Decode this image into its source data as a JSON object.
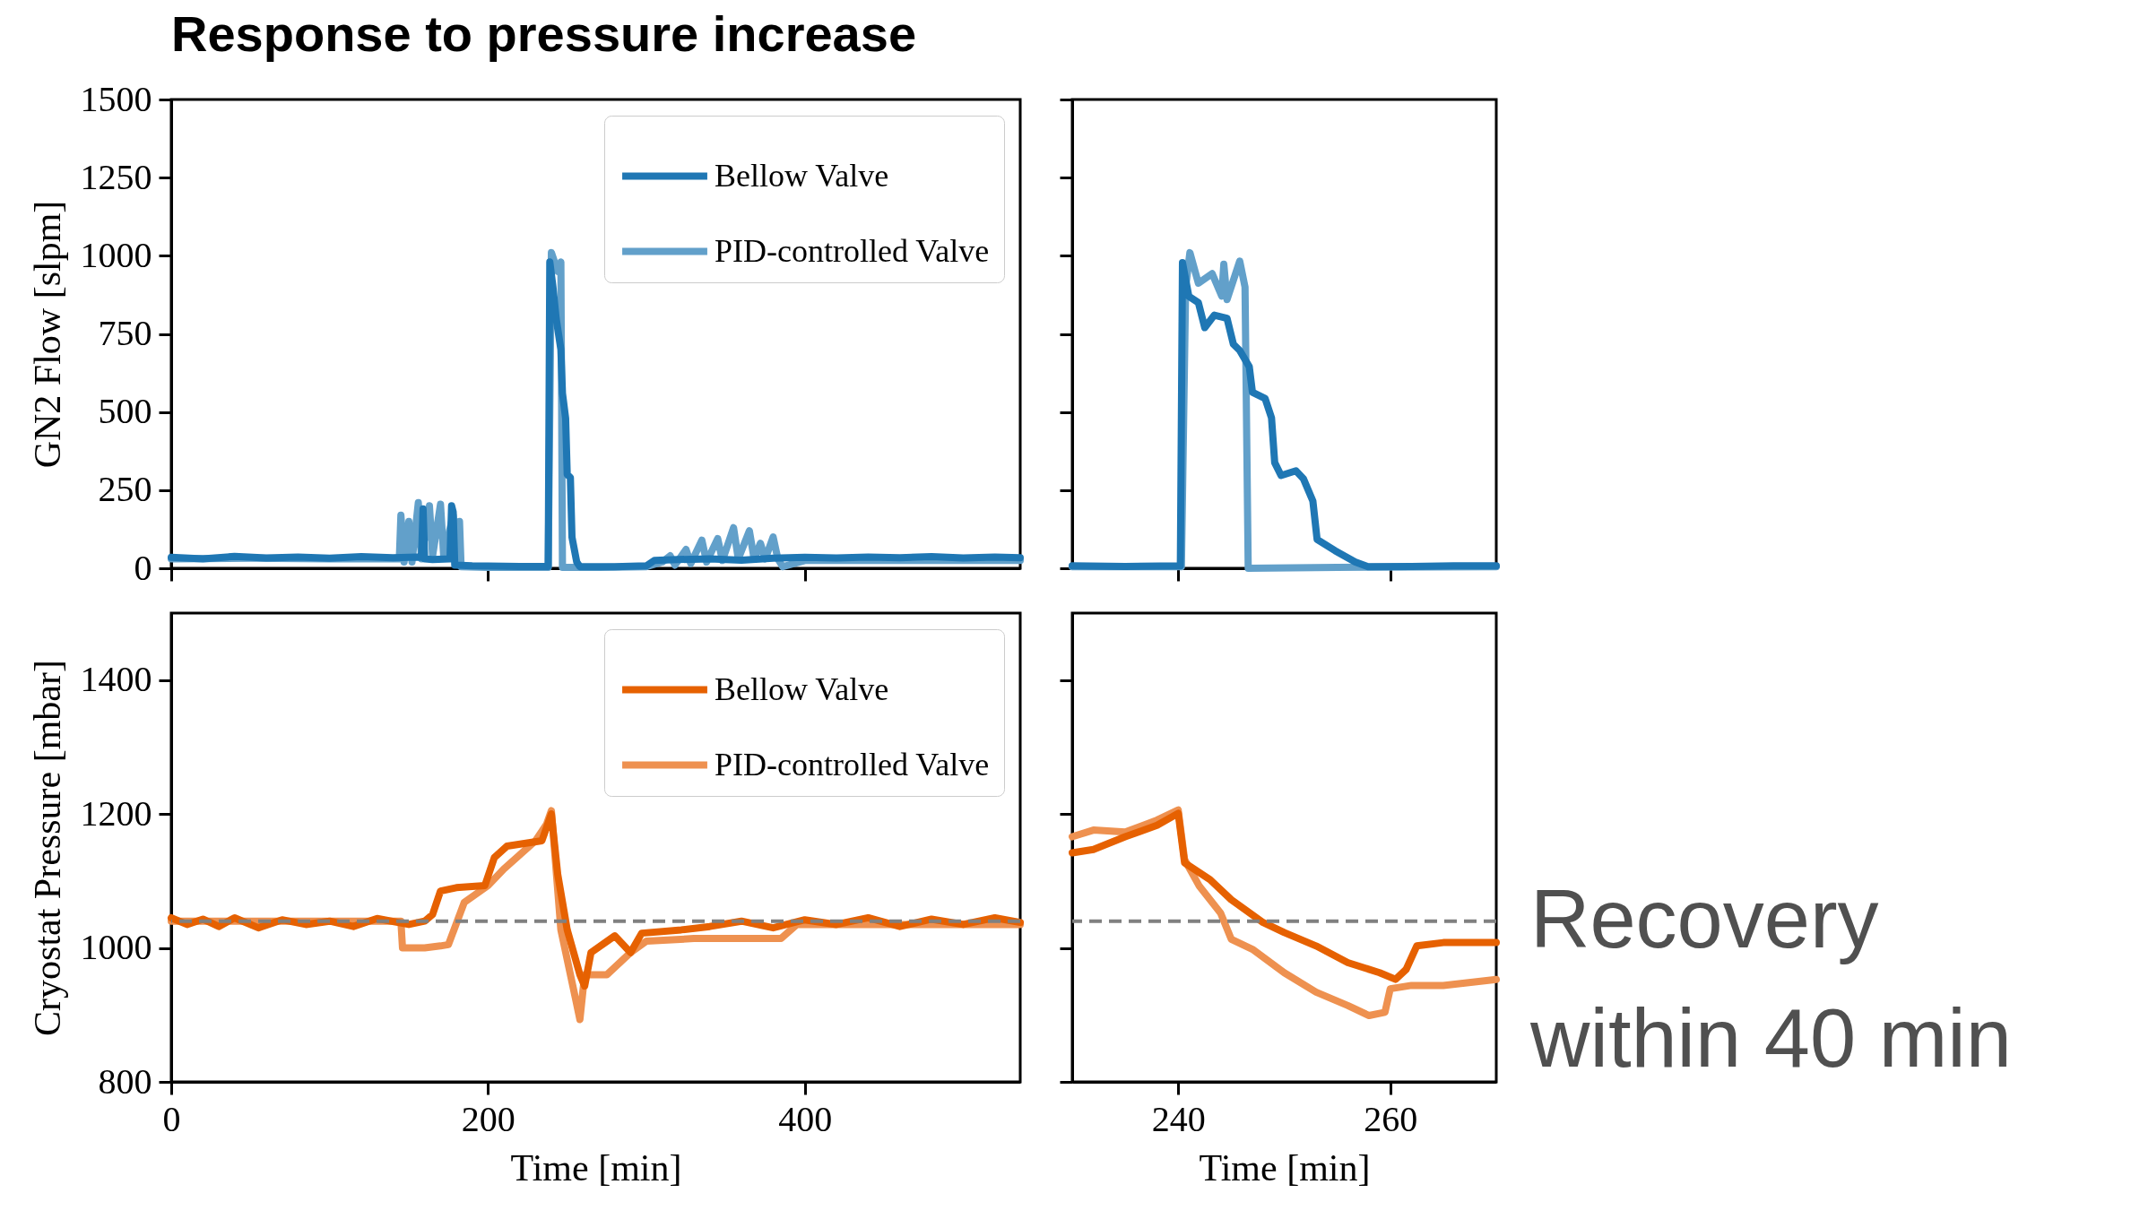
{
  "chart_data": [
    {
      "type": "line",
      "title": "Response to pressure increase",
      "ylabel": "GN2 Flow [slpm]",
      "xlim": [
        0,
        536
      ],
      "ylim": [
        0,
        1500
      ],
      "xticks": [
        0,
        200,
        400
      ],
      "yticks": [
        0,
        250,
        500,
        750,
        1000,
        1250,
        1500
      ],
      "tick_labels": "y",
      "legend": "top right",
      "grid": false,
      "series": [
        {
          "name": "Bellow Valve",
          "color": "#1f77b4",
          "x": [
            0,
            20,
            40,
            60,
            80,
            100,
            120,
            140,
            155,
            158,
            159,
            160,
            165,
            176,
            177,
            178,
            179,
            190,
            220,
            238,
            239,
            241,
            243,
            246,
            247,
            249,
            250,
            252,
            253,
            256,
            258,
            280,
            300,
            305,
            320,
            340,
            360,
            380,
            400,
            420,
            440,
            460,
            480,
            500,
            520,
            536
          ],
          "values": [
            35,
            30,
            38,
            33,
            36,
            32,
            37,
            34,
            36,
            35,
            190,
            30,
            28,
            30,
            200,
            180,
            10,
            8,
            6,
            6,
            980,
            900,
            800,
            700,
            560,
            480,
            300,
            290,
            100,
            20,
            5,
            5,
            8,
            25,
            28,
            30,
            26,
            32,
            35,
            33,
            36,
            34,
            37,
            33,
            36,
            34
          ]
        },
        {
          "name": "PID-controlled Valve",
          "color": "#62a0ca",
          "x": [
            0,
            50,
            100,
            144,
            145,
            147,
            150,
            152,
            156,
            158,
            163,
            165,
            170,
            172,
            178,
            180,
            182,
            183,
            200,
            238,
            240,
            244,
            246,
            247,
            270,
            300,
            310,
            315,
            318,
            325,
            328,
            335,
            338,
            345,
            348,
            355,
            358,
            365,
            368,
            372,
            375,
            380,
            383,
            386,
            400,
            536
          ],
          "values": [
            30,
            32,
            30,
            30,
            170,
            20,
            150,
            20,
            210,
            30,
            200,
            40,
            205,
            40,
            170,
            50,
            150,
            5,
            3,
            3,
            1010,
            950,
            980,
            3,
            3,
            5,
            20,
            40,
            10,
            60,
            15,
            90,
            20,
            95,
            25,
            130,
            30,
            120,
            30,
            80,
            30,
            100,
            30,
            5,
            25,
            25
          ]
        }
      ]
    },
    {
      "type": "line",
      "xlim": [
        230,
        270
      ],
      "ylim": [
        0,
        1500
      ],
      "xticks": [
        240,
        260
      ],
      "yticks": [
        0,
        250,
        500,
        750,
        1000,
        1250,
        1500
      ],
      "tick_labels": false,
      "grid": false,
      "series": [
        {
          "color": "#1f77b4",
          "x": [
            230,
            235,
            240.2,
            240.4,
            241,
            241.9,
            242.5,
            243.4,
            244.6,
            245.2,
            245.8,
            246.7,
            247,
            248.2,
            248.8,
            249.1,
            249.7,
            251.1,
            251.8,
            252.7,
            253.1,
            254.8,
            256.7,
            257.9,
            262,
            266,
            270
          ],
          "values": [
            8,
            6,
            8,
            978,
            870,
            850,
            770,
            810,
            800,
            717,
            697,
            645,
            563,
            543,
            481,
            338,
            297,
            312,
            287,
            215,
            92,
            56,
            20,
            5,
            6,
            8,
            8
          ]
        },
        {
          "color": "#62a0ca",
          "x": [
            230,
            240.3,
            240.7,
            241.1,
            241.9,
            243.2,
            244.1,
            244.3,
            244.6,
            245.8,
            246.3,
            246.6,
            255,
            270
          ],
          "values": [
            5,
            5,
            900,
            1010,
            912,
            943,
            871,
            973,
            860,
            983,
            900,
            0,
            3,
            5
          ]
        }
      ]
    },
    {
      "type": "line",
      "xlabel": "Time [min]",
      "ylabel": "Cryostat Pressure [mbar]",
      "xlim": [
        0,
        536
      ],
      "ylim": [
        800,
        1500
      ],
      "xticks": [
        0,
        200,
        400
      ],
      "yticks": [
        800,
        1000,
        1200,
        1400
      ],
      "legend": "top right",
      "grid": false,
      "ref_lines": [
        {
          "axis": "y",
          "value": 1040,
          "color": "#808080",
          "line_style": "dashed"
        }
      ],
      "series": [
        {
          "name": "Bellow Valve",
          "color": "#e66101",
          "x": [
            0,
            10,
            20,
            30,
            40,
            55,
            70,
            85,
            100,
            115,
            130,
            150,
            160,
            165,
            170,
            180,
            198,
            204,
            212,
            234,
            240,
            244,
            250,
            258,
            261,
            265,
            280,
            290,
            297,
            322,
            340,
            360,
            380,
            400,
            420,
            440,
            460,
            480,
            500,
            520,
            536
          ],
          "values": [
            1045,
            1035,
            1043,
            1032,
            1045,
            1030,
            1042,
            1035,
            1040,
            1032,
            1044,
            1035,
            1040,
            1050,
            1085,
            1090,
            1093,
            1135,
            1152,
            1160,
            1200,
            1110,
            1027,
            960,
            943,
            993,
            1018,
            993,
            1022,
            1027,
            1032,
            1040,
            1030,
            1042,
            1035,
            1045,
            1032,
            1043,
            1035,
            1045,
            1038
          ]
        },
        {
          "name": "PID-controlled Valve",
          "color": "#ee9150",
          "x": [
            0,
            145,
            146,
            160,
            170,
            175,
            185,
            200,
            210,
            230,
            237,
            240,
            246,
            255,
            258,
            261,
            275,
            290,
            300,
            330,
            385,
            395,
            536
          ],
          "values": [
            1040,
            1040,
            1000,
            1000,
            1003,
            1005,
            1068,
            1093,
            1118,
            1160,
            1185,
            1205,
            1027,
            927,
            893,
            960,
            960,
            993,
            1010,
            1014,
            1014,
            1035,
            1035
          ]
        }
      ]
    },
    {
      "type": "line",
      "xlabel": "Time [min]",
      "xlim": [
        230,
        270
      ],
      "ylim": [
        800,
        1500
      ],
      "xticks": [
        240,
        260
      ],
      "yticks": [
        800,
        1000,
        1200,
        1400
      ],
      "tick_labels": "x",
      "grid": false,
      "ref_lines": [
        {
          "axis": "y",
          "value": 1040,
          "color": "#808080",
          "line_style": "dashed"
        }
      ],
      "annotations": [
        "Recovery\nwithin 40 min"
      ],
      "series": [
        {
          "color": "#e66101",
          "x": [
            230,
            232,
            235,
            238,
            240,
            240.6,
            243,
            245,
            248,
            250,
            253,
            256,
            259,
            260.5,
            261.5,
            262.5,
            265,
            270
          ],
          "values": [
            1142,
            1147,
            1166,
            1183,
            1201,
            1127,
            1102,
            1072,
            1038,
            1023,
            1003,
            978,
            963,
            953,
            968,
            1003,
            1008,
            1008
          ]
        },
        {
          "color": "#ee9150",
          "x": [
            230,
            232,
            235,
            238,
            240,
            240.6,
            242,
            244,
            245,
            247,
            250,
            253,
            256,
            258,
            259.5,
            260,
            262,
            265,
            270
          ],
          "values": [
            1166,
            1176,
            1173,
            1191,
            1206,
            1132,
            1092,
            1052,
            1013,
            998,
            963,
            934,
            914,
            899,
            904,
            939,
            944,
            944,
            953
          ]
        }
      ]
    }
  ]
}
